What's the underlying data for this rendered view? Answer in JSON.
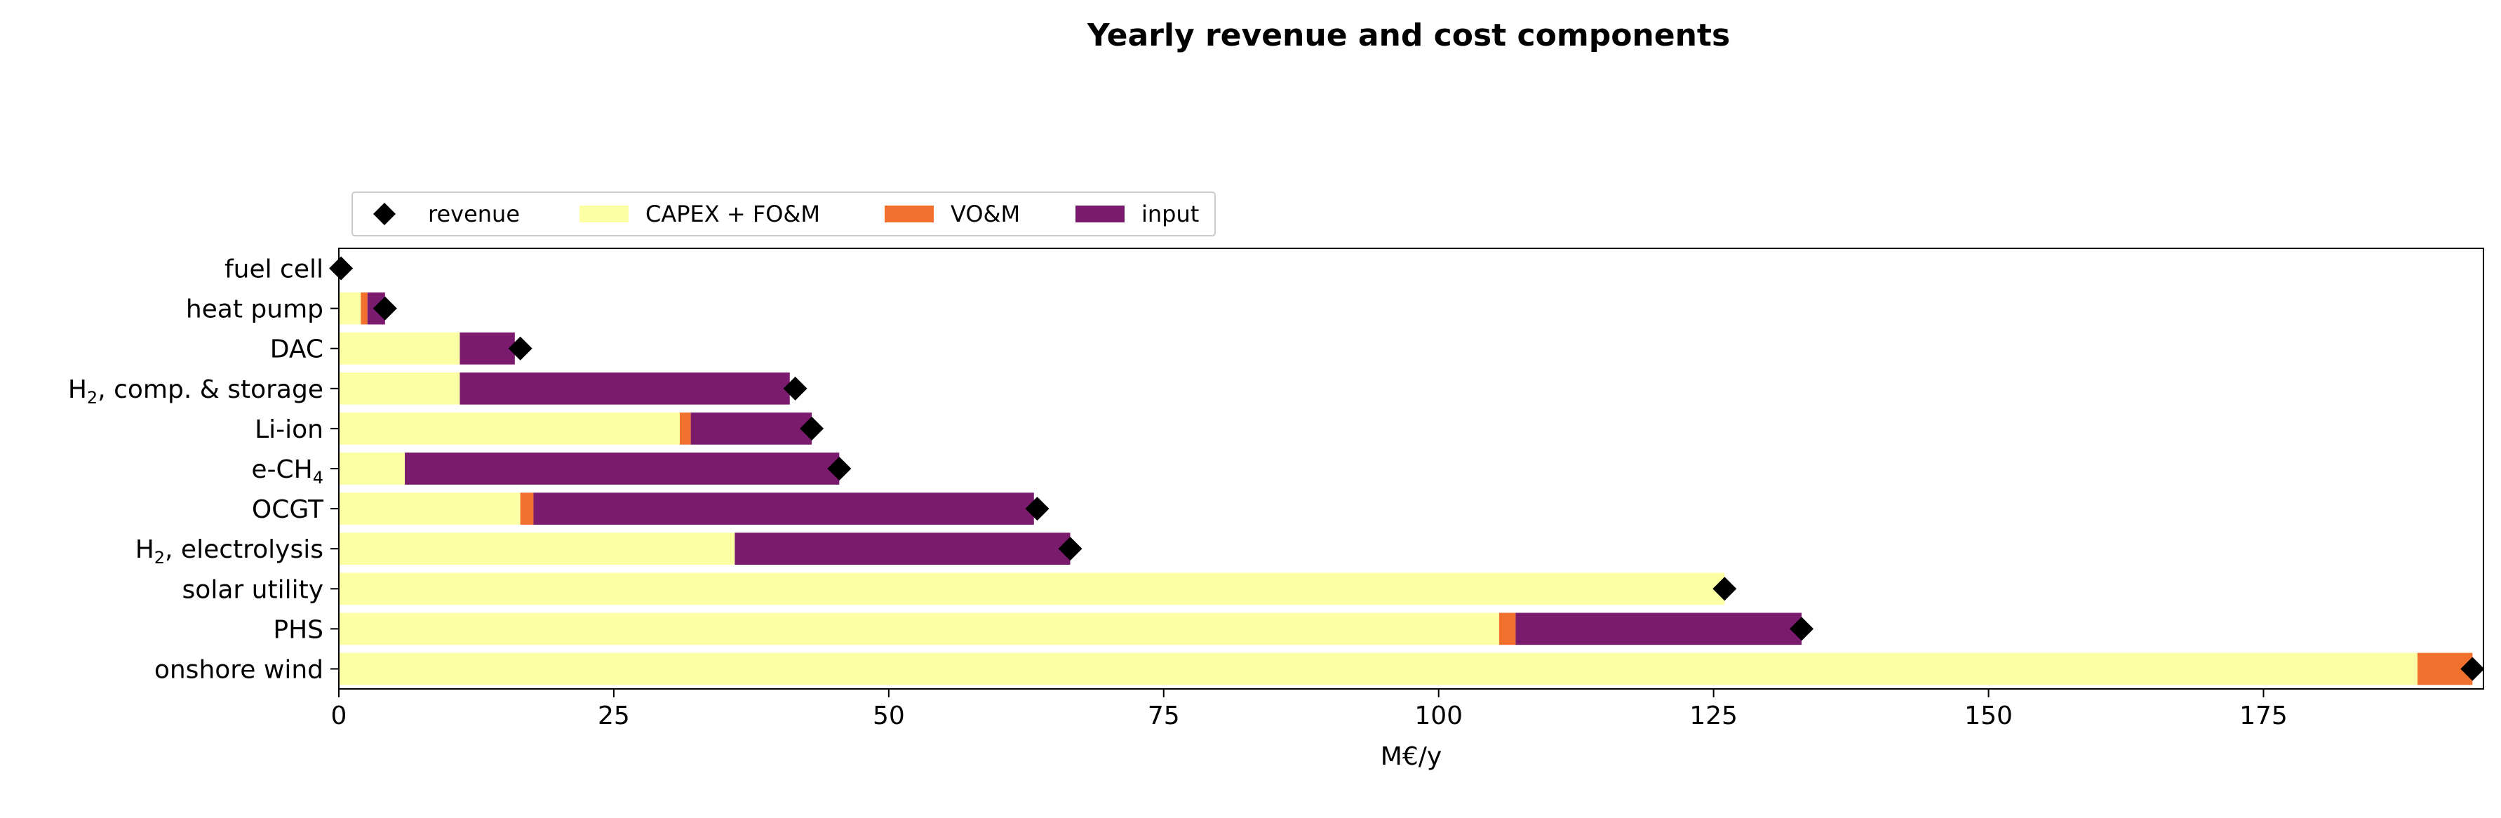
{
  "chart_data": {
    "type": "bar",
    "orientation": "horizontal",
    "stacked": true,
    "title": "Yearly revenue and cost components",
    "xlabel": "M€/y",
    "ylabel": "",
    "xlim": [
      0,
      195
    ],
    "xticks": [
      0,
      25,
      50,
      75,
      100,
      125,
      150,
      175
    ],
    "legend_position": "top-left, outside above plot",
    "categories": [
      "fuel cell",
      "heat pump",
      "DAC",
      "H2, comp. & storage",
      "Li-ion",
      "e-CH4",
      "OCGT",
      "H2, electrolysis",
      "solar utility",
      "PHS",
      "onshore wind"
    ],
    "category_display": [
      {
        "base": "fuel cell",
        "sub": "",
        "tail": ""
      },
      {
        "base": "heat pump",
        "sub": "",
        "tail": ""
      },
      {
        "base": "DAC",
        "sub": "",
        "tail": ""
      },
      {
        "base": "H",
        "sub": "2",
        "tail": ", comp. & storage"
      },
      {
        "base": "Li-ion",
        "sub": "",
        "tail": ""
      },
      {
        "base": "e-CH",
        "sub": "4",
        "tail": ""
      },
      {
        "base": "OCGT",
        "sub": "",
        "tail": ""
      },
      {
        "base": "H",
        "sub": "2",
        "tail": ", electrolysis"
      },
      {
        "base": "solar utility",
        "sub": "",
        "tail": ""
      },
      {
        "base": "PHS",
        "sub": "",
        "tail": ""
      },
      {
        "base": "onshore wind",
        "sub": "",
        "tail": ""
      }
    ],
    "series": [
      {
        "name": "CAPEX + FO&M",
        "color": "#fcffa4",
        "values": [
          0.0,
          2.0,
          11.0,
          11.0,
          31.0,
          6.0,
          16.5,
          36.0,
          126.0,
          105.5,
          189.0
        ]
      },
      {
        "name": "VO&M",
        "color": "#f1702d",
        "values": [
          0.0,
          0.6,
          0.0,
          0.0,
          1.0,
          0.0,
          1.2,
          0.0,
          0.0,
          1.5,
          5.0
        ]
      },
      {
        "name": "input",
        "color": "#7a1b6d",
        "values": [
          0.0,
          1.6,
          5.0,
          30.0,
          11.0,
          39.5,
          45.5,
          30.5,
          0.0,
          26.0,
          0.0
        ]
      }
    ],
    "revenue": {
      "name": "revenue",
      "color": "#000000",
      "marker": "diamond",
      "values": [
        0.2,
        4.2,
        16.5,
        41.5,
        43.0,
        45.5,
        63.5,
        66.5,
        126.0,
        133.0,
        194.0
      ]
    },
    "legend": [
      "revenue",
      "CAPEX + FO&M",
      "VO&M",
      "input"
    ],
    "grid": false
  }
}
